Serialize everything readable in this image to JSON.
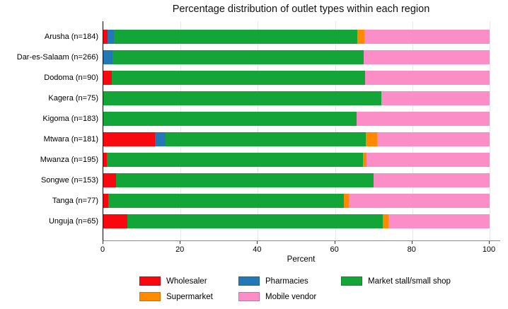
{
  "title": "Percentage distribution of outlet types within each region",
  "chart_data": {
    "type": "bar",
    "orientation": "horizontal",
    "stacked": true,
    "title": "Percentage distribution of outlet types within each region",
    "xlabel": "Percent",
    "xlim": [
      0,
      100
    ],
    "xticks": [
      0,
      20,
      40,
      60,
      80,
      100
    ],
    "grid": true,
    "legend_position": "bottom",
    "categories": [
      "Arusha (n=184)",
      "Dar-es-Salaam (n=266)",
      "Dodoma (n=90)",
      "Kagera (n=75)",
      "Kigoma (n=183)",
      "Mtwara (n=181)",
      "Mwanza (n=195)",
      "Songwe (n=153)",
      "Tanga (n=77)",
      "Unguja (n=65)"
    ],
    "series": [
      {
        "name": "Wholesaler",
        "color": "#f8090f",
        "values": [
          1.1,
          0,
          2.2,
          0,
          0,
          13.3,
          1.0,
          3.3,
          1.3,
          6.2
        ]
      },
      {
        "name": "Pharmacies",
        "color": "#2379b5",
        "values": [
          1.6,
          2.3,
          0,
          0,
          0,
          2.8,
          0,
          0,
          0,
          0
        ]
      },
      {
        "name": "Market stall/small shop",
        "color": "#13a538",
        "values": [
          63.0,
          65.1,
          65.6,
          72.0,
          65.6,
          51.9,
          66.2,
          66.7,
          61.0,
          66.2
        ]
      },
      {
        "name": "Supermarket",
        "color": "#ff8a00",
        "values": [
          1.9,
          0,
          0,
          0,
          0,
          2.8,
          1.0,
          0,
          1.3,
          1.5
        ]
      },
      {
        "name": "Mobile vendor",
        "color": "#fb8dc7",
        "values": [
          32.4,
          32.6,
          32.2,
          28.0,
          34.4,
          29.2,
          31.8,
          30.0,
          36.4,
          26.1
        ]
      }
    ],
    "legend_display_order": [
      {
        "label": "Wholesaler",
        "color": "#f8090f"
      },
      {
        "label": "Pharmacies",
        "color": "#2379b5"
      },
      {
        "label": "Market stall/small shop",
        "color": "#13a538"
      },
      {
        "label": "Supermarket",
        "color": "#ff8a00"
      },
      {
        "label": "Mobile vendor",
        "color": "#fb8dc7"
      }
    ]
  }
}
